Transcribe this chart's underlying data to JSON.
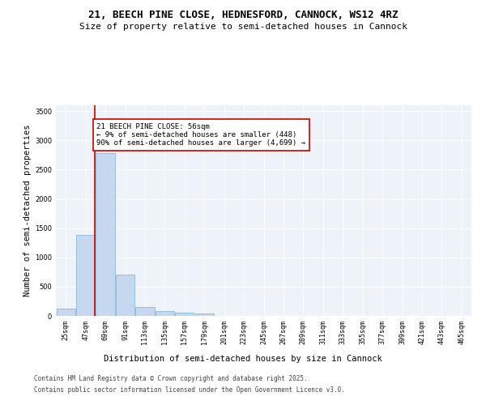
{
  "title_line1": "21, BEECH PINE CLOSE, HEDNESFORD, CANNOCK, WS12 4RZ",
  "title_line2": "Size of property relative to semi-detached houses in Cannock",
  "xlabel": "Distribution of semi-detached houses by size in Cannock",
  "ylabel": "Number of semi-detached properties",
  "categories": [
    "25sqm",
    "47sqm",
    "69sqm",
    "91sqm",
    "113sqm",
    "135sqm",
    "157sqm",
    "179sqm",
    "201sqm",
    "223sqm",
    "245sqm",
    "267sqm",
    "289sqm",
    "311sqm",
    "333sqm",
    "355sqm",
    "377sqm",
    "399sqm",
    "421sqm",
    "443sqm",
    "465sqm"
  ],
  "values": [
    130,
    1380,
    2780,
    700,
    155,
    90,
    55,
    35,
    0,
    0,
    0,
    0,
    0,
    0,
    0,
    0,
    0,
    0,
    0,
    0,
    0
  ],
  "bar_color": "#c5d8f0",
  "bar_edge_color": "#7aadd4",
  "vline_x": 1.45,
  "vline_color": "#cc0000",
  "annotation_box_text": "21 BEECH PINE CLOSE: 56sqm\n← 9% of semi-detached houses are smaller (448)\n90% of semi-detached houses are larger (4,699) →",
  "annotation_box_color": "#cc0000",
  "ylim": [
    0,
    3600
  ],
  "yticks": [
    0,
    500,
    1000,
    1500,
    2000,
    2500,
    3000,
    3500
  ],
  "background_color": "#eef3fa",
  "grid_color": "#ffffff",
  "footer_line1": "Contains HM Land Registry data © Crown copyright and database right 2025.",
  "footer_line2": "Contains public sector information licensed under the Open Government Licence v3.0.",
  "title_fontsize": 9,
  "subtitle_fontsize": 8,
  "axis_label_fontsize": 7.5,
  "tick_fontsize": 6,
  "annotation_fontsize": 6.5,
  "footer_fontsize": 5.5
}
